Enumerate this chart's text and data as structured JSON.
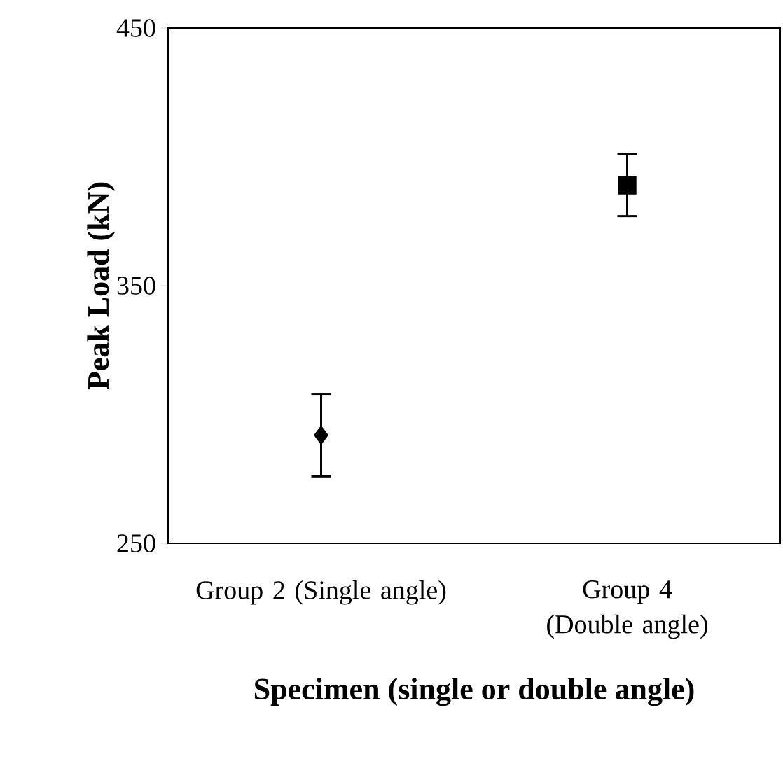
{
  "chart_data": {
    "type": "scatter",
    "xlabel": "Specimen (single or double angle)",
    "ylabel": "Peak Load (kN)",
    "categories": [
      "Group 2 (Single angle)",
      "Group 4 (Double angle)"
    ],
    "series": [
      {
        "color": "#000000",
        "marker": "diamond",
        "values": [
          292,
          null
        ],
        "errors": [
          16,
          null
        ]
      },
      {
        "color": "#000000",
        "marker": "square",
        "values": [
          null,
          389
        ],
        "errors": [
          null,
          12
        ]
      }
    ],
    "ylim": [
      250,
      450
    ],
    "yticks": [
      250,
      350,
      450
    ]
  }
}
